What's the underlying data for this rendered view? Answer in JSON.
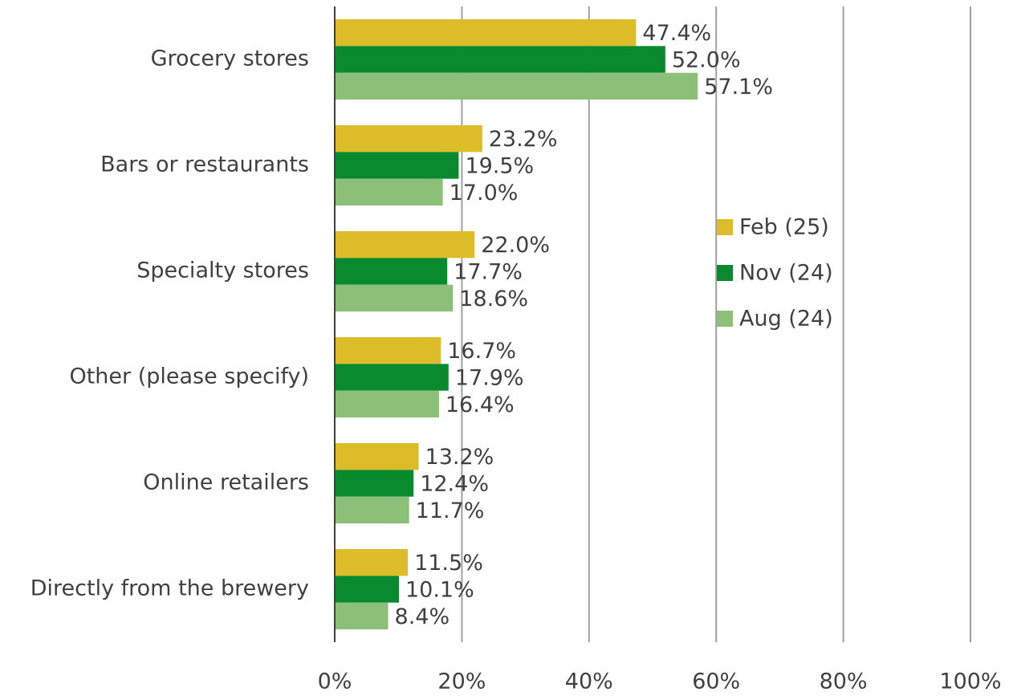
{
  "chart_data": {
    "type": "hbar",
    "categories": [
      "Grocery stores",
      "Bars or restaurants",
      "Specialty stores",
      "Other (please specify)",
      "Online retailers",
      "Directly from the brewery"
    ],
    "series": [
      {
        "name": "Feb (25)",
        "color": "#dcbc28",
        "values": [
          47.4,
          23.2,
          22.0,
          16.7,
          13.2,
          11.5
        ],
        "value_labels": [
          "47.4%",
          "23.2%",
          "22.0%",
          "16.7%",
          "13.2%",
          "11.5%"
        ]
      },
      {
        "name": "Nov (24)",
        "color": "#098a2f",
        "values": [
          52.0,
          19.5,
          17.7,
          17.9,
          12.4,
          10.1
        ],
        "value_labels": [
          "52.0%",
          "19.5%",
          "17.7%",
          "17.9%",
          "12.4%",
          "10.1%"
        ]
      },
      {
        "name": "Aug (24)",
        "color": "#8cc078",
        "values": [
          57.1,
          17.0,
          18.6,
          16.4,
          11.7,
          8.4
        ],
        "value_labels": [
          "57.1%",
          "17.0%",
          "18.6%",
          "16.4%",
          "11.7%",
          "8.4%"
        ]
      }
    ],
    "xlim": [
      0,
      100
    ],
    "xticks": [
      {
        "value": 0,
        "label": "0%"
      },
      {
        "value": 20,
        "label": "20%"
      },
      {
        "value": 40,
        "label": "40%"
      },
      {
        "value": 60,
        "label": "60%"
      },
      {
        "value": 80,
        "label": "80%"
      },
      {
        "value": 100,
        "label": "100%"
      }
    ],
    "grid": true,
    "legend": "right"
  }
}
